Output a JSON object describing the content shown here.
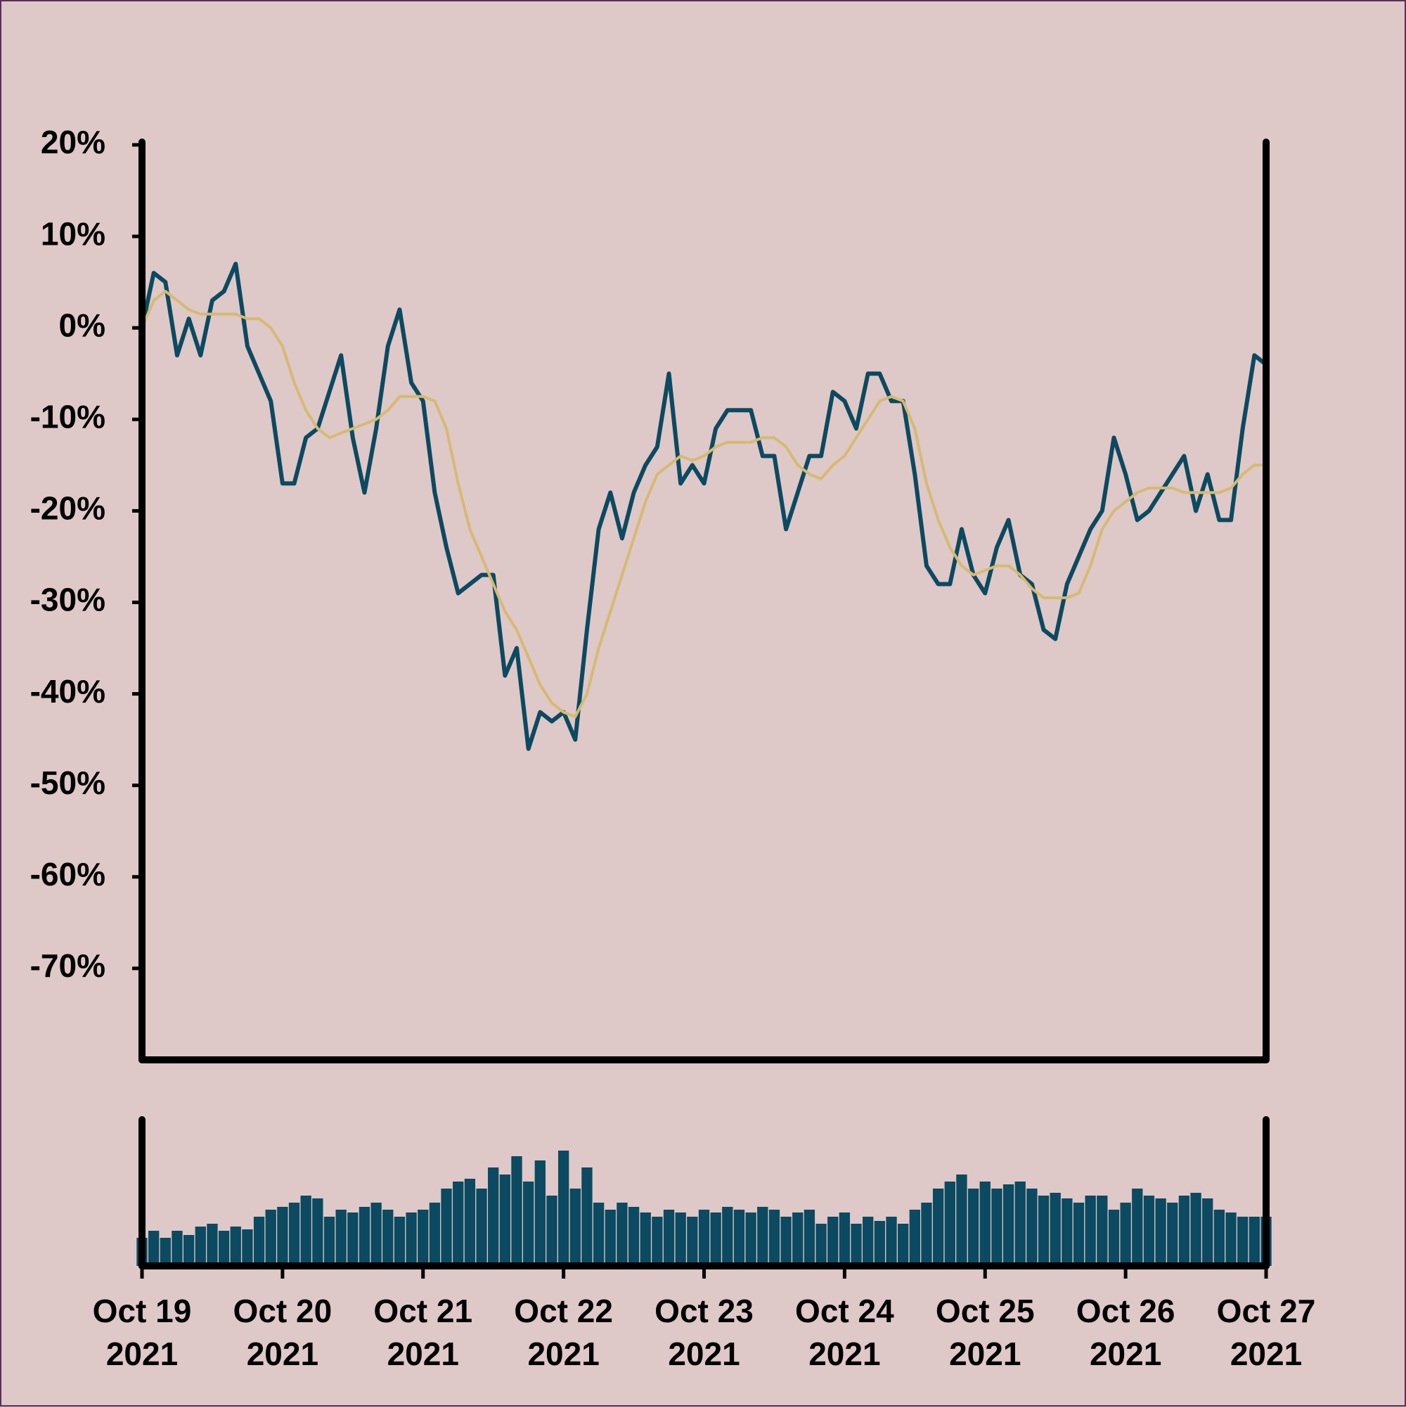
{
  "chart_data": [
    {
      "type": "line",
      "x": [
        0,
        2,
        4,
        6,
        8,
        10,
        12,
        14,
        16,
        18,
        20,
        22,
        24,
        26,
        28,
        30,
        32,
        34,
        36,
        38,
        40,
        42,
        44,
        46,
        48,
        50,
        52,
        54,
        56,
        58,
        60,
        62,
        64,
        66,
        68,
        70,
        72,
        74,
        76,
        78,
        80,
        82,
        84,
        86,
        88,
        90,
        92,
        94,
        96,
        98,
        100,
        102,
        104,
        106,
        108,
        110,
        112,
        114,
        116,
        118,
        120,
        122,
        124,
        126,
        128,
        130,
        132,
        134,
        136,
        138,
        140,
        142,
        144,
        146,
        148,
        150,
        152,
        154,
        156,
        158,
        160,
        162,
        164,
        166,
        168,
        170,
        172,
        174,
        176,
        178,
        180,
        182,
        184,
        186,
        188,
        190,
        192
      ],
      "series": [
        {
          "color": "#0b4a60",
          "values": [
            0,
            6,
            5,
            -3,
            1,
            -3,
            3,
            4,
            7,
            -2,
            -5,
            -8,
            -17,
            -17,
            -12,
            -11,
            -7,
            -3,
            -12,
            -18,
            -11,
            -2,
            2,
            -6,
            -8,
            -18,
            -24,
            -29,
            -28,
            -27,
            -27,
            -38,
            -35,
            -46,
            -42,
            -43,
            -42,
            -45,
            -33,
            -22,
            -18,
            -23,
            -18,
            -15,
            -13,
            -5,
            -17,
            -15,
            -17,
            -11,
            -9,
            -9,
            -9,
            -14,
            -14,
            -22,
            -18,
            -14,
            -14,
            -7,
            -8,
            -11,
            -5,
            -5,
            -8,
            -8,
            -16,
            -26,
            -28,
            -28,
            -22,
            -27,
            -29,
            -24,
            -21,
            -27,
            -28,
            -33,
            -34,
            -28,
            -25,
            -22,
            -20,
            -12,
            -16,
            -21,
            -20,
            -18,
            -16,
            -14,
            -20,
            -16,
            -21,
            -21,
            -11,
            -3,
            -4
          ]
        },
        {
          "color": "#d4bb72",
          "values": [
            0,
            3,
            4,
            3,
            2,
            1.5,
            1.5,
            1.5,
            1.5,
            1,
            1,
            0,
            -2,
            -6,
            -9,
            -11,
            -12,
            -11.5,
            -11,
            -10.5,
            -10,
            -9,
            -7.5,
            -7.5,
            -7.5,
            -8,
            -11,
            -17,
            -22,
            -25,
            -28,
            -31,
            -33,
            -36,
            -39,
            -41,
            -42,
            -42.5,
            -40,
            -35,
            -31,
            -27,
            -23,
            -19,
            -16,
            -15,
            -14,
            -14.5,
            -14,
            -13,
            -12.5,
            -12.5,
            -12.5,
            -12,
            -12,
            -13,
            -15,
            -16,
            -16.5,
            -15,
            -14,
            -12,
            -10,
            -8,
            -7.5,
            -8,
            -11,
            -17,
            -21,
            -24,
            -26,
            -27,
            -26.5,
            -26,
            -26,
            -27,
            -28.5,
            -29.5,
            -29.5,
            -29.5,
            -29,
            -26,
            -22,
            -20,
            -19,
            -18,
            -17.5,
            -17.5,
            -17.5,
            -18,
            -18,
            -18,
            -18,
            -17.5,
            -16,
            -15,
            -15
          ]
        }
      ],
      "xlim": [
        0,
        192
      ],
      "ylim": [
        -80,
        20
      ],
      "yticks": [
        {
          "value": 20,
          "label": "20%"
        },
        {
          "value": 10,
          "label": "10%"
        },
        {
          "value": 0,
          "label": "0%"
        },
        {
          "value": -10,
          "label": "-10%"
        },
        {
          "value": -20,
          "label": "-20%"
        },
        {
          "value": -30,
          "label": "-30%"
        },
        {
          "value": -40,
          "label": "-40%"
        },
        {
          "value": -50,
          "label": "-50%"
        },
        {
          "value": -60,
          "label": "-60%"
        },
        {
          "value": -70,
          "label": "-70%"
        }
      ]
    },
    {
      "type": "bar",
      "x": [
        0,
        2,
        4,
        6,
        8,
        10,
        12,
        14,
        16,
        18,
        20,
        22,
        24,
        26,
        28,
        30,
        32,
        34,
        36,
        38,
        40,
        42,
        44,
        46,
        48,
        50,
        52,
        54,
        56,
        58,
        60,
        62,
        64,
        66,
        68,
        70,
        72,
        74,
        76,
        78,
        80,
        82,
        84,
        86,
        88,
        90,
        92,
        94,
        96,
        98,
        100,
        102,
        104,
        106,
        108,
        110,
        112,
        114,
        116,
        118,
        120,
        122,
        124,
        126,
        128,
        130,
        132,
        134,
        136,
        138,
        140,
        142,
        144,
        146,
        148,
        150,
        152,
        154,
        156,
        158,
        160,
        162,
        164,
        166,
        168,
        170,
        172,
        174,
        176,
        178,
        180,
        182,
        184,
        186,
        188,
        190,
        192
      ],
      "values": [
        20,
        25,
        20,
        25,
        22,
        28,
        30,
        25,
        28,
        26,
        35,
        40,
        42,
        45,
        50,
        48,
        35,
        40,
        38,
        42,
        45,
        40,
        35,
        38,
        40,
        45,
        55,
        60,
        62,
        55,
        70,
        65,
        78,
        60,
        75,
        50,
        82,
        55,
        70,
        45,
        40,
        45,
        42,
        38,
        35,
        40,
        38,
        35,
        40,
        38,
        42,
        40,
        38,
        42,
        40,
        35,
        38,
        40,
        30,
        35,
        38,
        30,
        35,
        32,
        35,
        30,
        40,
        45,
        55,
        60,
        65,
        55,
        60,
        55,
        58,
        60,
        55,
        50,
        52,
        48,
        45,
        50,
        50,
        40,
        45,
        55,
        50,
        48,
        45,
        50,
        52,
        48,
        40,
        38,
        35,
        35,
        35
      ],
      "color": "#0b4a60",
      "xlim": [
        0,
        192
      ],
      "ylim": [
        0,
        100
      ],
      "xticks": [
        {
          "value": 0,
          "label": "Oct 19\n2021"
        },
        {
          "value": 24,
          "label": "Oct 20\n2021"
        },
        {
          "value": 48,
          "label": "Oct 21\n2021"
        },
        {
          "value": 72,
          "label": "Oct 22\n2021"
        },
        {
          "value": 96,
          "label": "Oct 23\n2021"
        },
        {
          "value": 120,
          "label": "Oct 24\n2021"
        },
        {
          "value": 144,
          "label": "Oct 25\n2021"
        },
        {
          "value": 168,
          "label": "Oct 26\n2021"
        },
        {
          "value": 192,
          "label": "Oct 27\n2021"
        }
      ]
    }
  ]
}
